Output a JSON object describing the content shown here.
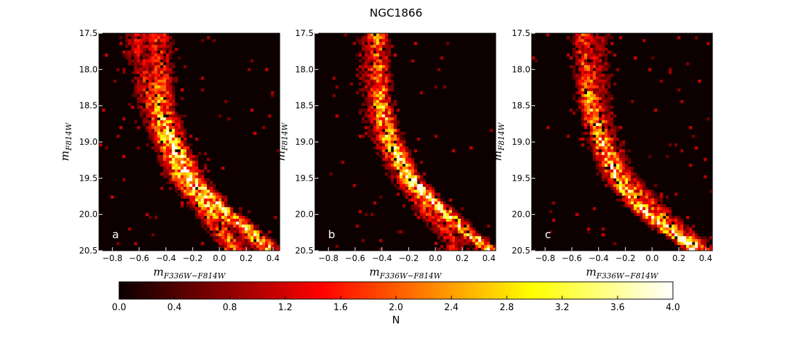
{
  "chart_data": {
    "type": "heatmap",
    "title": "NGC1866",
    "panels": [
      {
        "label": "a",
        "xlabel": {
          "base": "m",
          "sub": "F336W−F814W"
        },
        "ylabel": {
          "base": "m",
          "sub": "F814W"
        },
        "sequences": [
          {
            "name": "red",
            "anchors": [
              [
                -0.45,
                17.6
              ],
              [
                -0.42,
                18.5
              ],
              [
                -0.33,
                19.0
              ],
              [
                -0.2,
                19.5
              ],
              [
                0.0,
                19.9
              ],
              [
                0.2,
                20.2
              ],
              [
                0.35,
                20.45
              ]
            ],
            "width": 0.06,
            "peak": 3.4
          },
          {
            "name": "blue",
            "anchors": [
              [
                -0.62,
                17.8
              ],
              [
                -0.52,
                18.5
              ],
              [
                -0.42,
                19.0
              ],
              [
                -0.3,
                19.5
              ],
              [
                -0.08,
                20.0
              ],
              [
                0.1,
                20.45
              ]
            ],
            "width": 0.06,
            "peak": 2.4
          }
        ]
      },
      {
        "label": "b",
        "xlabel": {
          "base": "m",
          "sub": "F336W−F814W"
        },
        "ylabel": {
          "base": "m",
          "sub": "F814W"
        },
        "sequences": [
          {
            "name": "red",
            "anchors": [
              [
                -0.42,
                17.6
              ],
              [
                -0.4,
                18.5
              ],
              [
                -0.32,
                19.0
              ],
              [
                -0.18,
                19.5
              ],
              [
                0.0,
                19.85
              ],
              [
                0.18,
                20.15
              ],
              [
                0.38,
                20.45
              ]
            ],
            "width": 0.05,
            "peak": 3.6
          },
          {
            "name": "blue",
            "anchors": [
              [
                -0.5,
                18.3
              ],
              [
                -0.4,
                19.0
              ],
              [
                -0.25,
                19.5
              ],
              [
                -0.05,
                20.0
              ],
              [
                0.15,
                20.4
              ]
            ],
            "width": 0.06,
            "peak": 1.6
          }
        ]
      },
      {
        "label": "c",
        "xlabel": {
          "base": "m",
          "sub": "F336W−F814W"
        },
        "ylabel": {
          "base": "m",
          "sub": "F814W"
        },
        "sequences": [
          {
            "name": "blue",
            "anchors": [
              [
                -0.52,
                17.6
              ],
              [
                -0.48,
                18.5
              ],
              [
                -0.4,
                19.0
              ],
              [
                -0.28,
                19.5
              ],
              [
                -0.1,
                19.9
              ],
              [
                0.1,
                20.2
              ],
              [
                0.3,
                20.45
              ]
            ],
            "width": 0.05,
            "peak": 3.4
          },
          {
            "name": "red",
            "anchors": [
              [
                -0.38,
                17.6
              ],
              [
                -0.4,
                18.5
              ],
              [
                -0.32,
                19.0
              ],
              [
                -0.18,
                19.5
              ],
              [
                0.0,
                19.85
              ],
              [
                0.2,
                20.2
              ],
              [
                0.38,
                20.45
              ]
            ],
            "width": 0.06,
            "peak": 1.8
          }
        ]
      }
    ],
    "xlim": [
      -0.9,
      0.45
    ],
    "ylim": [
      20.5,
      17.5
    ],
    "xticks": [
      "−0.8",
      "−0.6",
      "−0.4",
      "−0.2",
      "0.0",
      "0.2",
      "0.4"
    ],
    "xtick_values": [
      -0.8,
      -0.6,
      -0.4,
      -0.2,
      0.0,
      0.2,
      0.4
    ],
    "yticks": [
      "17.5",
      "18.0",
      "18.5",
      "19.0",
      "19.5",
      "20.0",
      "20.5"
    ],
    "ytick_values": [
      17.5,
      18.0,
      18.5,
      19.0,
      19.5,
      20.0,
      20.5
    ],
    "colorbar": {
      "label": "N",
      "range": [
        0.0,
        4.0
      ],
      "colormap": "hot",
      "ticks": [
        "0.0",
        "0.4",
        "0.8",
        "1.2",
        "1.6",
        "2.0",
        "2.4",
        "2.8",
        "3.2",
        "3.6",
        "4.0"
      ],
      "tick_values": [
        0.0,
        0.4,
        0.8,
        1.2,
        1.6,
        2.0,
        2.4,
        2.8,
        3.2,
        3.6,
        4.0
      ]
    },
    "background_color": "#0d0000",
    "grid": false
  }
}
